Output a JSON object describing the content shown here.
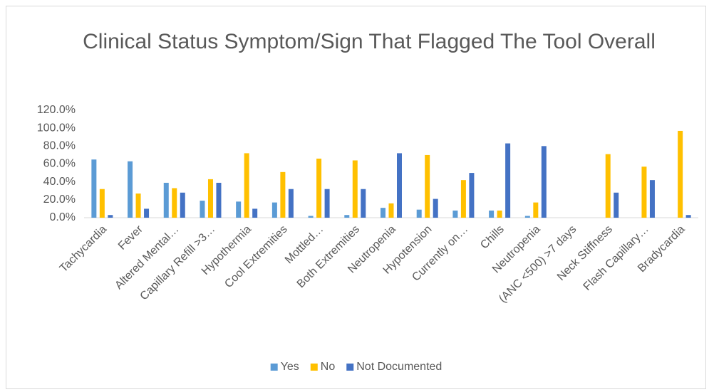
{
  "chart_data": {
    "type": "bar",
    "title": "Clinical Status Symptom/Sign That Flagged The Tool Overall",
    "categories": [
      "Tachycardia",
      "Fever",
      "Altered Mental…",
      "Capillary Refill >3…",
      "Hypothermia",
      "Cool Extremities",
      "Mottled…",
      "Both Extremities",
      "Neutropenia",
      "Hypotension",
      "Currently on…",
      "Chills",
      "Neutropenia",
      "(ANC <500) >7 days",
      "Neck Stiffness",
      "Flash Capillary…",
      "Bradycardia"
    ],
    "series": [
      {
        "name": "Yes",
        "color": "#5b9bd5",
        "values": [
          65,
          63,
          39,
          19,
          18,
          17,
          2,
          3,
          11,
          9,
          8,
          8,
          2,
          null,
          null,
          null,
          null
        ]
      },
      {
        "name": "No",
        "color": "#ffc000",
        "values": [
          32,
          27,
          33,
          43,
          72,
          51,
          66,
          64,
          16,
          70,
          42,
          8,
          17,
          null,
          71,
          57,
          97
        ]
      },
      {
        "name": "Not Documented",
        "color": "#4472c4",
        "values": [
          3,
          10,
          28,
          39,
          10,
          32,
          32,
          32,
          72,
          21,
          50,
          83,
          80,
          null,
          28,
          42,
          3
        ]
      }
    ],
    "ylim": [
      0,
      120
    ],
    "yticks": [
      {
        "value": 0,
        "label": "0.0%"
      },
      {
        "value": 20,
        "label": "20.0%"
      },
      {
        "value": 40,
        "label": "40.0%"
      },
      {
        "value": 60,
        "label": "60.0%"
      },
      {
        "value": 80,
        "label": "80.0%"
      },
      {
        "value": 100,
        "label": "100.0%"
      },
      {
        "value": 120,
        "label": "120.0%"
      }
    ],
    "grid": false,
    "legend": "bottom"
  }
}
